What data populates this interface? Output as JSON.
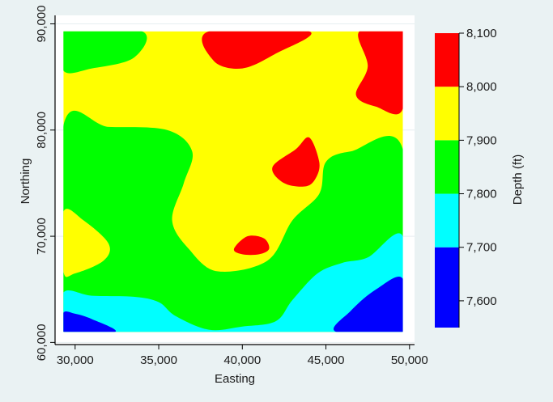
{
  "chart_data": {
    "type": "contour",
    "xlabel": "Easting",
    "ylabel": "Northing",
    "x_ticks": [
      30000,
      35000,
      40000,
      45000,
      50000
    ],
    "x_tick_labels": [
      "30,000",
      "35,000",
      "40,000",
      "45,000",
      "50,000"
    ],
    "y_ticks": [
      60000,
      70000,
      80000,
      90000
    ],
    "y_tick_labels": [
      "60,000",
      "70,000",
      "80,000",
      "90,000"
    ],
    "xlim": [
      28800,
      50300
    ],
    "ylim": [
      59800,
      90800
    ],
    "data_extent": {
      "x": [
        29300,
        49600
      ],
      "y": [
        61000,
        89300
      ]
    },
    "grid": true,
    "legend": {
      "title": "Depth (ft)",
      "placement": "right",
      "tick_values": [
        7600,
        7700,
        7800,
        7900,
        8000,
        8100
      ],
      "tick_labels": [
        "7,600",
        "7,700",
        "7,800",
        "7,900",
        "8,000",
        "8,100"
      ],
      "range": [
        7550,
        8100
      ]
    },
    "levels": [
      {
        "min": 7550,
        "max": 7700,
        "color": "#0000ff"
      },
      {
        "min": 7700,
        "max": 7800,
        "color": "#00ffff"
      },
      {
        "min": 7800,
        "max": 7900,
        "color": "#00ff00"
      },
      {
        "min": 7900,
        "max": 8000,
        "color": "#ffff00"
      },
      {
        "min": 8000,
        "max": 8100,
        "color": "#ff0000"
      }
    ],
    "regions": [
      {
        "level": 2,
        "points": [
          [
            29300,
            61000
          ],
          [
            49600,
            61000
          ],
          [
            49600,
            78200
          ],
          [
            46500,
            78000
          ],
          [
            45000,
            77000
          ],
          [
            44600,
            74000
          ],
          [
            43000,
            71500
          ],
          [
            41500,
            67700
          ],
          [
            38500,
            66700
          ],
          [
            36800,
            68800
          ],
          [
            35800,
            71500
          ],
          [
            36500,
            75000
          ],
          [
            37000,
            78000
          ],
          [
            35500,
            80000
          ],
          [
            32000,
            80300
          ],
          [
            29300,
            80400
          ]
        ]
      },
      {
        "level": 2,
        "points": [
          [
            29300,
            89300
          ],
          [
            34000,
            89300
          ],
          [
            33500,
            86800
          ],
          [
            31000,
            85800
          ],
          [
            29300,
            85600
          ]
        ]
      },
      {
        "level": 3,
        "points": [
          [
            29300,
            72300
          ],
          [
            30500,
            71500
          ],
          [
            32000,
            69300
          ],
          [
            31700,
            67700
          ],
          [
            30000,
            66500
          ],
          [
            29300,
            66700
          ]
        ]
      },
      {
        "level": 1,
        "points": [
          [
            29300,
            61000
          ],
          [
            49600,
            61000
          ],
          [
            49600,
            70000
          ],
          [
            47500,
            68000
          ],
          [
            46000,
            67500
          ],
          [
            44500,
            66500
          ],
          [
            43000,
            64000
          ],
          [
            42000,
            62000
          ],
          [
            40000,
            61500
          ],
          [
            38000,
            61200
          ],
          [
            36000,
            62500
          ],
          [
            35000,
            63800
          ],
          [
            33500,
            64300
          ],
          [
            31000,
            64400
          ],
          [
            29300,
            64700
          ]
        ]
      },
      {
        "level": 0,
        "points": [
          [
            29300,
            61000
          ],
          [
            32400,
            61000
          ],
          [
            31000,
            62200
          ],
          [
            30000,
            62700
          ],
          [
            29300,
            62800
          ]
        ]
      },
      {
        "level": 0,
        "points": [
          [
            49600,
            61000
          ],
          [
            45600,
            61000
          ],
          [
            46500,
            63000
          ],
          [
            48000,
            65000
          ],
          [
            49600,
            66000
          ]
        ]
      },
      {
        "level": 4,
        "points": [
          [
            38000,
            89300
          ],
          [
            44000,
            89300
          ],
          [
            42000,
            87200
          ],
          [
            40000,
            85800
          ],
          [
            38300,
            86500
          ]
        ]
      },
      {
        "level": 4,
        "points": [
          [
            47000,
            89300
          ],
          [
            49600,
            89300
          ],
          [
            49600,
            82000
          ],
          [
            48000,
            82200
          ],
          [
            46800,
            83300
          ],
          [
            47500,
            86000
          ]
        ]
      },
      {
        "level": 4,
        "points": [
          [
            41800,
            76500
          ],
          [
            43200,
            78200
          ],
          [
            44000,
            79300
          ],
          [
            44600,
            77000
          ],
          [
            44400,
            75500
          ],
          [
            43800,
            74700
          ],
          [
            42500,
            75000
          ]
        ]
      },
      {
        "level": 4,
        "points": [
          [
            39500,
            68800
          ],
          [
            40300,
            70000
          ],
          [
            41300,
            69800
          ],
          [
            41600,
            68800
          ],
          [
            41000,
            68300
          ],
          [
            40000,
            68300
          ]
        ]
      }
    ]
  }
}
